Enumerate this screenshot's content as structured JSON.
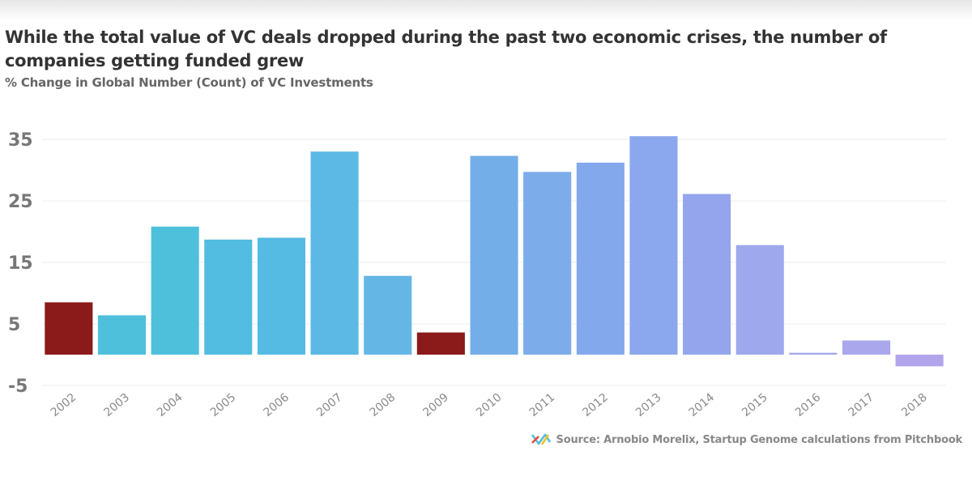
{
  "title": "While the total value of VC deals dropped during the past two economic crises, the number of companies getting funded grew",
  "subtitle": "% Change in Global Number (Count) of VC Investments",
  "source": "Source: Arnobio Morelix, Startup Genome calculations from Pitchbook",
  "chart_data": {
    "type": "bar",
    "title": "While the total value of VC deals dropped during the past two economic crises, the number of companies getting funded grew",
    "subtitle": "% Change in Global Number (Count) of VC Investments",
    "xlabel": "",
    "ylabel": "",
    "ylim": [
      -5,
      35
    ],
    "yticks": [
      35,
      25,
      15,
      5,
      -5
    ],
    "grid": true,
    "legend": "none",
    "categories": [
      "2002",
      "2003",
      "2004",
      "2005",
      "2006",
      "2007",
      "2008",
      "2009",
      "2010",
      "2011",
      "2012",
      "2013",
      "2014",
      "2015",
      "2016",
      "2017",
      "2018"
    ],
    "values": [
      8.5,
      6.4,
      20.8,
      18.7,
      19.0,
      33.0,
      12.8,
      3.6,
      32.3,
      29.7,
      31.2,
      35.5,
      26.1,
      17.8,
      0.3,
      2.3,
      -1.9
    ],
    "colors": [
      "#8b1a1a",
      "#4ec0dc",
      "#4ec0dc",
      "#52bde0",
      "#55bbe2",
      "#5cb8e4",
      "#64b6e5",
      "#8b1a1a",
      "#74aee8",
      "#7cacea",
      "#83a9ec",
      "#8ba7ed",
      "#95a5ed",
      "#9ea8ec",
      "#a6a8ec",
      "#aaa7ec",
      "#b3a5ec"
    ]
  }
}
